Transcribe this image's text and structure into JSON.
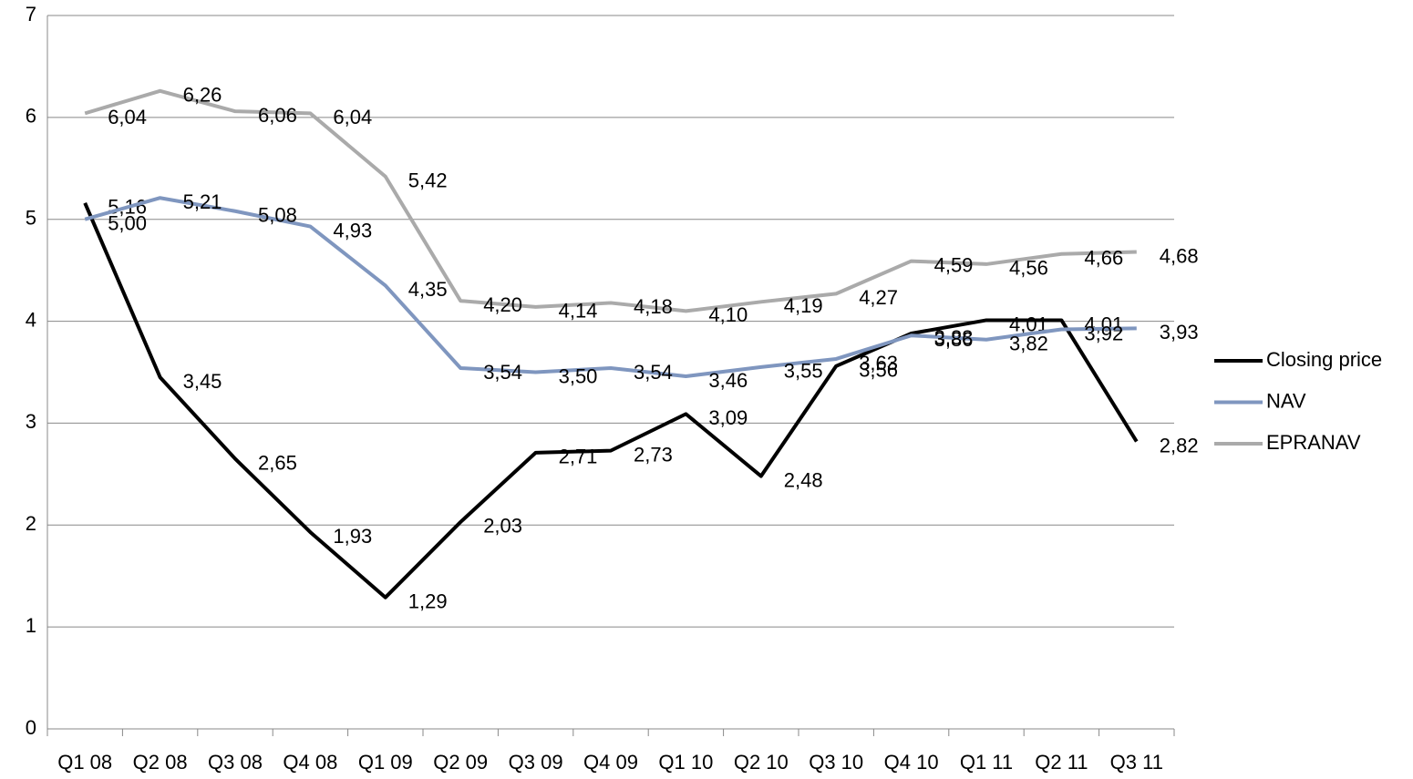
{
  "chart_data": {
    "type": "line",
    "categories": [
      "Q1 08",
      "Q2 08",
      "Q3 08",
      "Q4 08",
      "Q1 09",
      "Q2 09",
      "Q3 09",
      "Q4 09",
      "Q1 10",
      "Q2 10",
      "Q3 10",
      "Q4 10",
      "Q1 11",
      "Q2 11",
      "Q3 11"
    ],
    "series": [
      {
        "name": "Closing price",
        "color": "#000000",
        "values": [
          5.16,
          3.45,
          2.65,
          1.93,
          1.29,
          2.03,
          2.71,
          2.73,
          3.09,
          2.48,
          3.56,
          3.88,
          4.01,
          4.01,
          2.82
        ],
        "value_labels": [
          "5,16",
          "3,45",
          "2,65",
          "1,93",
          "1,29",
          "2,03",
          "2,71",
          "2,73",
          "3,09",
          "2,48",
          "3,56",
          "3,88",
          "4,01",
          "4,01",
          "2,82"
        ]
      },
      {
        "name": "NAV",
        "color": "#7f96bf",
        "values": [
          5.0,
          5.21,
          5.08,
          4.93,
          4.35,
          3.54,
          3.5,
          3.54,
          3.46,
          3.55,
          3.63,
          3.86,
          3.82,
          3.92,
          3.93
        ],
        "value_labels": [
          "5,00",
          "5,21",
          "5,08",
          "4,93",
          "4,35",
          "3,54",
          "3,50",
          "3,54",
          "3,46",
          "3,55",
          "3,63",
          "3,86",
          "3,82",
          "3,92",
          "3,93"
        ]
      },
      {
        "name": "EPRANAV",
        "color": "#aaaaaa",
        "values": [
          6.04,
          6.26,
          6.06,
          6.04,
          5.42,
          4.2,
          4.14,
          4.18,
          4.1,
          4.19,
          4.27,
          4.59,
          4.56,
          4.66,
          4.68
        ],
        "value_labels": [
          "6,04",
          "6,26",
          "6,06",
          "6,04",
          "5,42",
          "4,20",
          "4,14",
          "4,18",
          "4,10",
          "4,19",
          "4,27",
          "4,59",
          "4,56",
          "4,66",
          "4,68"
        ]
      }
    ],
    "ylim": [
      0,
      7
    ],
    "yticks": [
      0,
      1,
      2,
      3,
      4,
      5,
      6,
      7
    ],
    "grid": true,
    "legend": "right"
  }
}
